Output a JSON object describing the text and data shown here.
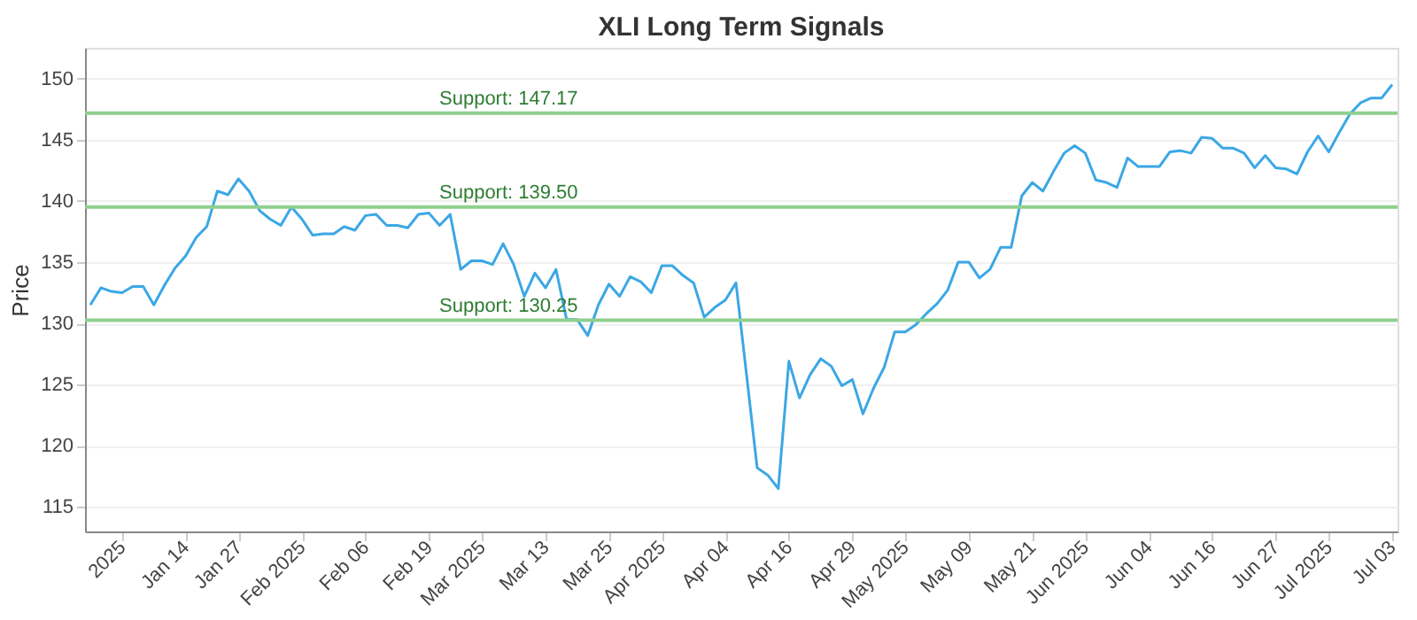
{
  "chart_data": {
    "type": "line",
    "title": "XLI Long Term Signals",
    "ylabel": "Price",
    "categories": [
      null,
      null,
      null,
      "2025",
      null,
      null,
      null,
      null,
      null,
      "Jan 14",
      null,
      null,
      null,
      null,
      "Jan 27",
      null,
      null,
      null,
      null,
      null,
      "Feb 2025",
      null,
      null,
      null,
      null,
      null,
      "Feb 06",
      null,
      null,
      null,
      null,
      null,
      "Feb 19",
      null,
      null,
      null,
      null,
      "Mar 2025",
      null,
      null,
      null,
      null,
      null,
      "Mar 13",
      null,
      null,
      null,
      null,
      null,
      "Mar 25",
      null,
      null,
      null,
      null,
      "Apr 2025",
      null,
      null,
      null,
      null,
      null,
      "Apr 04",
      null,
      null,
      null,
      null,
      null,
      "Apr 16",
      null,
      null,
      null,
      null,
      null,
      "Apr 29",
      null,
      null,
      null,
      null,
      "May 2025",
      null,
      null,
      null,
      null,
      null,
      "May 09",
      null,
      null,
      null,
      null,
      null,
      "May 21",
      null,
      null,
      null,
      null,
      "Jun 2025",
      null,
      null,
      null,
      null,
      null,
      "Jun 04",
      null,
      null,
      null,
      null,
      null,
      "Jun 16",
      null,
      null,
      null,
      null,
      null,
      "Jun 27",
      null,
      null,
      null,
      null,
      "Jul 2025",
      null,
      null,
      null,
      null,
      null,
      "Jul 03"
    ],
    "series": [
      {
        "color": "#3ba7e5",
        "values": [
          131.5,
          132.9,
          132.6,
          132.5,
          133.0,
          133.0,
          131.5,
          133.1,
          134.5,
          135.5,
          137.0,
          137.9,
          140.8,
          140.5,
          141.8,
          140.8,
          139.2,
          138.5,
          138.0,
          139.5,
          138.5,
          137.2,
          137.3,
          137.3,
          137.9,
          137.6,
          138.8,
          138.9,
          138.0,
          138.0,
          137.8,
          138.9,
          139.0,
          138.0,
          138.9,
          134.4,
          135.1,
          135.1,
          134.8,
          136.5,
          134.8,
          132.2,
          134.1,
          132.9,
          134.4,
          130.3,
          130.3,
          129.0,
          131.5,
          133.2,
          132.2,
          133.8,
          133.4,
          132.5,
          134.7,
          134.7,
          133.9,
          133.3,
          130.5,
          131.3,
          131.9,
          133.3,
          125.8,
          118.2,
          117.6,
          116.5,
          126.9,
          123.9,
          125.8,
          127.1,
          126.5,
          124.9,
          125.4,
          122.6,
          124.7,
          126.4,
          129.3,
          129.3,
          129.9,
          130.8,
          131.6,
          132.7,
          135.0,
          135.0,
          133.7,
          134.4,
          136.2,
          136.2,
          140.4,
          141.5,
          140.8,
          142.4,
          143.9,
          144.5,
          143.9,
          141.7,
          141.5,
          141.1,
          143.5,
          142.8,
          142.8,
          142.8,
          144.0,
          144.1,
          143.9,
          145.2,
          145.1,
          144.3,
          144.3,
          143.9,
          142.7,
          143.7,
          142.7,
          142.6,
          142.2,
          144.0,
          145.3,
          144.0,
          145.6,
          147.1,
          148.0,
          148.4,
          148.4,
          149.5
        ]
      }
    ],
    "ylim": [
      113,
      152.5
    ],
    "yticks": [
      115,
      120,
      125,
      130,
      135,
      140,
      145,
      150
    ],
    "grid": "y",
    "marker": "none",
    "line_style": "solid",
    "ref_lines": [
      {
        "axis": "y",
        "value": 147.17,
        "label": "Support: 147.17",
        "color": "#8fcf8f"
      },
      {
        "axis": "y",
        "value": 139.5,
        "label": "Support: 139.50",
        "color": "#8fcf8f"
      },
      {
        "axis": "y",
        "value": 130.25,
        "label": "Support: 130.25",
        "color": "#8fcf8f"
      }
    ]
  }
}
